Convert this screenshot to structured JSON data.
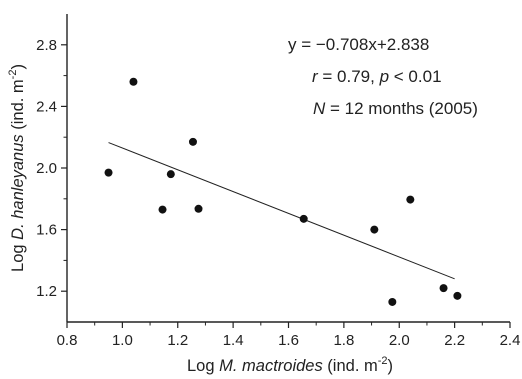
{
  "chart_data": {
    "type": "scatter",
    "title": "",
    "xlabel": {
      "prefix": "Log ",
      "italic": "M. mactroides",
      "suffix": " (ind. m",
      "superscript": "-2",
      "close": ")"
    },
    "ylabel": {
      "prefix": "Log ",
      "italic": "D. hanleyanus",
      "suffix": " (ind. m",
      "superscript": "-2",
      "close": ")"
    },
    "xlim": [
      0.8,
      2.4
    ],
    "ylim": [
      1.0,
      3.0
    ],
    "xticks": [
      "0.8",
      "1.0",
      "1.2",
      "1.4",
      "1.6",
      "1.8",
      "2.0",
      "2.2",
      "2.4"
    ],
    "yticks": [
      "1.2",
      "1.6",
      "2.0",
      "2.4",
      "2.8"
    ],
    "grid": false,
    "points": [
      {
        "x": 0.95,
        "y": 1.97
      },
      {
        "x": 1.04,
        "y": 2.56
      },
      {
        "x": 1.145,
        "y": 1.73
      },
      {
        "x": 1.175,
        "y": 1.96
      },
      {
        "x": 1.255,
        "y": 2.17
      },
      {
        "x": 1.275,
        "y": 1.735
      },
      {
        "x": 1.655,
        "y": 1.67
      },
      {
        "x": 1.91,
        "y": 1.6
      },
      {
        "x": 1.975,
        "y": 1.13
      },
      {
        "x": 2.04,
        "y": 1.795
      },
      {
        "x": 2.16,
        "y": 1.22
      },
      {
        "x": 2.21,
        "y": 1.17
      }
    ],
    "regression": {
      "slope": -0.708,
      "intercept": 2.838,
      "x_range": [
        0.95,
        2.2
      ]
    },
    "annotations": {
      "equation": "y = −0.708x+2.838",
      "stats": {
        "r_symbol": "r",
        "r_text": " = 0.79, ",
        "p_symbol": "p",
        "p_text": " < 0.01"
      },
      "sample": {
        "n_symbol": "N",
        "n_text": " = 12 months (2005)"
      }
    }
  }
}
